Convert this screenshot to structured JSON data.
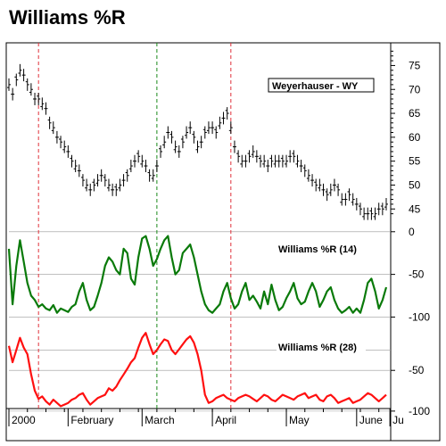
{
  "page": {
    "title": "Williams %R"
  },
  "colors": {
    "vline_red": "#e0303a",
    "vline_green": "#1a8a1a",
    "wr14": "#0a7a0a",
    "wr28": "#ff1010",
    "grid": "#9a9a9a"
  },
  "chart_data": [
    {
      "type": "ohlc",
      "name": "price",
      "label": "Weyerhauser - WY",
      "ylim": [
        43,
        79
      ],
      "yticks": [
        45,
        50,
        55,
        60,
        65,
        70,
        75
      ],
      "close": [
        71,
        69,
        72,
        74,
        73,
        71,
        70,
        68,
        68,
        67,
        66,
        63,
        62,
        60,
        59,
        58,
        57,
        55,
        54,
        53,
        51,
        50,
        49,
        50,
        51,
        52,
        51,
        50,
        49,
        49,
        50,
        51,
        52,
        54,
        55,
        56,
        55,
        54,
        52,
        52,
        54,
        57,
        59,
        61,
        60,
        58,
        57,
        59,
        61,
        62,
        60,
        58,
        59,
        61,
        62,
        62,
        61,
        63,
        64,
        65,
        62,
        58,
        56,
        55,
        55,
        56,
        57,
        56,
        55,
        55,
        54,
        55,
        55,
        55,
        55,
        55,
        56,
        56,
        55,
        54,
        53,
        52,
        51,
        50,
        50,
        49,
        48,
        49,
        50,
        49,
        47,
        47,
        48,
        47,
        46,
        45,
        44,
        44,
        44,
        44,
        45,
        45,
        46
      ]
    },
    {
      "type": "line",
      "name": "Williams %R (14)",
      "label": "Williams %R (14)",
      "ylim": [
        -110,
        5
      ],
      "yticks": [
        0,
        -50,
        -100
      ],
      "values": [
        -20,
        -85,
        -40,
        -10,
        -35,
        -60,
        -75,
        -80,
        -88,
        -85,
        -90,
        -92,
        -86,
        -95,
        -90,
        -92,
        -94,
        -88,
        -85,
        -70,
        -60,
        -80,
        -92,
        -88,
        -75,
        -60,
        -40,
        -30,
        -35,
        -45,
        -50,
        -20,
        -25,
        -55,
        -62,
        -30,
        -8,
        -5,
        -20,
        -40,
        -32,
        -20,
        -10,
        -5,
        -30,
        -50,
        -45,
        -25,
        -20,
        -15,
        -30,
        -50,
        -70,
        -85,
        -92,
        -95,
        -90,
        -85,
        -70,
        -60,
        -78,
        -90,
        -85,
        -70,
        -60,
        -80,
        -75,
        -82,
        -90,
        -70,
        -85,
        -62,
        -80,
        -92,
        -88,
        -78,
        -70,
        -60,
        -78,
        -85,
        -82,
        -70,
        -60,
        -70,
        -88,
        -80,
        -70,
        -65,
        -80,
        -90,
        -95,
        -92,
        -88,
        -95,
        -90,
        -95,
        -80,
        -60,
        -55,
        -70,
        -90,
        -80,
        -65
      ]
    },
    {
      "type": "line",
      "name": "Williams %R (28)",
      "label": "Williams %R (28)",
      "ylim": [
        -110,
        5
      ],
      "yticks": [
        -50,
        -100
      ],
      "values": [
        -20,
        -40,
        -25,
        -10,
        -22,
        -30,
        -55,
        -75,
        -85,
        -82,
        -88,
        -92,
        -86,
        -90,
        -94,
        -92,
        -90,
        -86,
        -84,
        -80,
        -78,
        -86,
        -92,
        -88,
        -84,
        -82,
        -80,
        -72,
        -75,
        -70,
        -62,
        -55,
        -48,
        -40,
        -35,
        -22,
        -10,
        -4,
        -18,
        -30,
        -25,
        -18,
        -12,
        -14,
        -25,
        -30,
        -24,
        -18,
        -12,
        -8,
        -16,
        -30,
        -50,
        -80,
        -90,
        -88,
        -84,
        -82,
        -80,
        -84,
        -86,
        -88,
        -84,
        -82,
        -80,
        -82,
        -85,
        -88,
        -84,
        -80,
        -82,
        -86,
        -88,
        -84,
        -80,
        -82,
        -84,
        -86,
        -82,
        -80,
        -78,
        -84,
        -82,
        -80,
        -86,
        -88,
        -82,
        -80,
        -84,
        -90,
        -88,
        -86,
        -84,
        -90,
        -88,
        -86,
        -82,
        -78,
        -80,
        -84,
        -88,
        -84,
        -80
      ]
    }
  ],
  "xaxis": {
    "labels": [
      "2000",
      "February",
      "March",
      "April",
      "May",
      "June",
      "Ju"
    ],
    "label_index": [
      0,
      16,
      36,
      55,
      75,
      94,
      103
    ],
    "vlines": [
      {
        "index": 8,
        "color": "red"
      },
      {
        "index": 40,
        "color": "green"
      },
      {
        "index": 60,
        "color": "red"
      }
    ]
  }
}
